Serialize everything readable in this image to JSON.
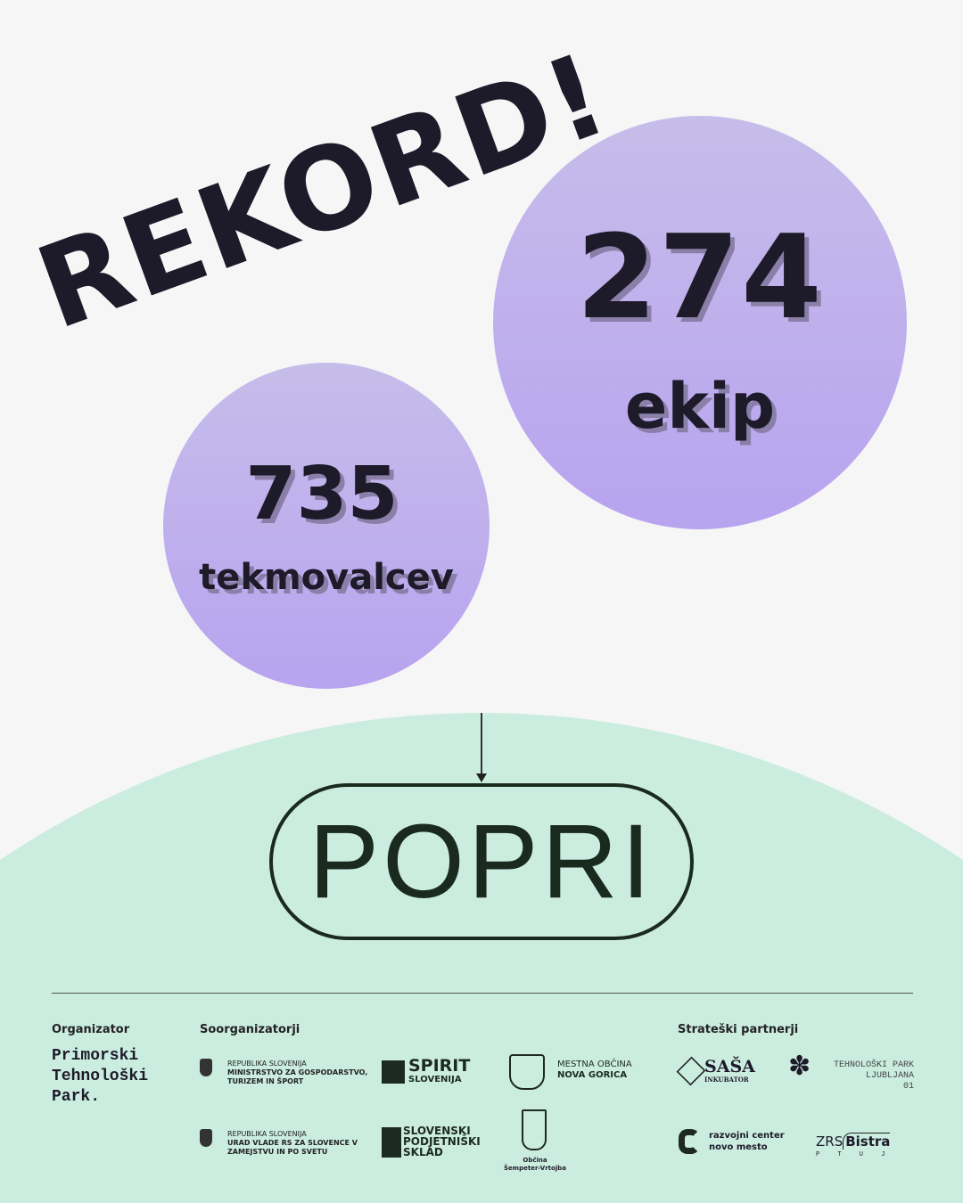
{
  "headline": "REKORD!",
  "stats": [
    {
      "value": "274",
      "label": "ekip"
    },
    {
      "value": "735",
      "label": "tekmovalcev"
    }
  ],
  "brand": "POPRI",
  "colors": {
    "background": "#f6f6f6",
    "circle": "#bcabee",
    "green": "#cbede0",
    "text": "#1d1a29"
  },
  "footer": {
    "organizer_heading": "Organizator",
    "organizer": [
      "Primorski",
      "Tehnološki",
      "Park."
    ],
    "coorganizers_heading": "Soorganizatorji",
    "coorganizers": [
      {
        "line1": "REPUBLIKA SLOVENIJA",
        "line2": "MINISTRSTVO ZA GOSPODARSTVO,",
        "line3": "TURIZEM IN ŠPORT"
      },
      {
        "line1": "REPUBLIKA SLOVENIJA",
        "line2": "URAD VLADE RS ZA SLOVENCE V",
        "line3": "ZAMEJSTVU IN PO SVETU"
      },
      {
        "line1": "SPIRIT",
        "line2": "SLOVENIJA"
      },
      {
        "line1": "SLOVENSKI",
        "line2": "PODJETNIŠKI",
        "line3": "SKLAD"
      },
      {
        "line1": "MESTNA OBČINA",
        "line2": "NOVA GORICA"
      },
      {
        "line1": "Občina",
        "line2": "Šempeter-Vrtojba"
      }
    ],
    "partners_heading": "Strateški partnerji",
    "partners": [
      {
        "line1": "SAŠA",
        "line2": "INKUBATOR"
      },
      {
        "line1": "TEHNOLOŠKI PARK",
        "line2": "LJUBLJANA",
        "line3": "01"
      },
      {
        "line1": "razvojni center",
        "line2": "novo mesto"
      },
      {
        "line1": "ZRS",
        "line2": "Bistra",
        "line3": "P T U J"
      }
    ]
  }
}
